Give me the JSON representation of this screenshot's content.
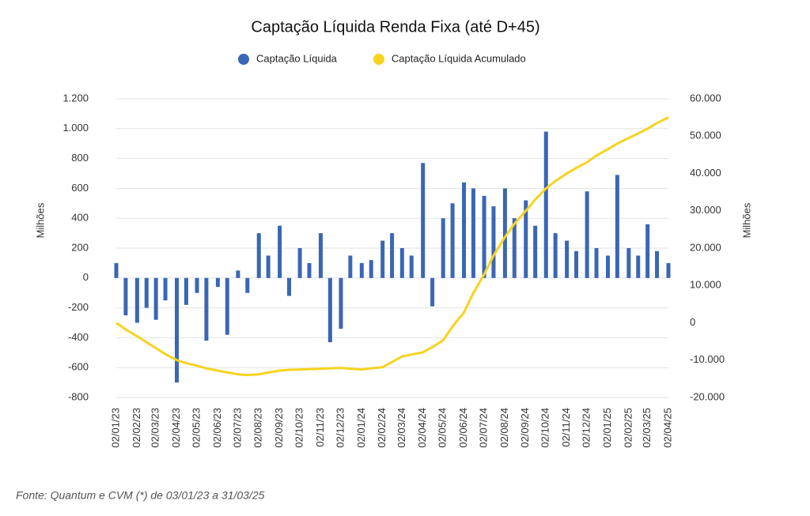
{
  "chart_data": {
    "type": "bar_line",
    "title": "Captação Líquida Renda Fixa (até D+45)",
    "source": "Fonte: Quantum e CVM (*) de 03/01/23 a 31/03/25",
    "y_label": "Milhões",
    "y2_label": "Milhões",
    "x": [
      "02/01/23",
      "16/01/23",
      "02/02/23",
      "16/02/23",
      "02/03/23",
      "16/03/23",
      "02/04/23",
      "16/04/23",
      "02/05/23",
      "16/05/23",
      "02/06/23",
      "16/06/23",
      "02/07/23",
      "16/07/23",
      "02/08/23",
      "16/08/23",
      "02/09/23",
      "16/09/23",
      "02/10/23",
      "16/10/23",
      "02/11/23",
      "16/11/23",
      "02/12/23",
      "16/12/23",
      "02/01/24",
      "16/01/24",
      "02/02/24",
      "16/02/24",
      "02/03/24",
      "16/03/24",
      "02/04/24",
      "16/04/24",
      "02/05/24",
      "16/05/24",
      "02/06/24",
      "16/06/24",
      "02/07/24",
      "16/07/24",
      "02/08/24",
      "16/08/24",
      "02/09/24",
      "16/09/24",
      "02/10/24",
      "16/10/24",
      "02/11/24",
      "16/11/24",
      "02/12/24",
      "16/12/24",
      "02/01/25",
      "16/01/25",
      "02/02/25",
      "16/02/25",
      "02/03/25",
      "16/03/25",
      "02/04/25"
    ],
    "series": [
      {
        "name": "Captação Líquida",
        "color": "#3a66b5",
        "axis": "y",
        "values": [
          100,
          -250,
          -300,
          -200,
          -280,
          -150,
          -700,
          -180,
          -100,
          -420,
          -60,
          -380,
          50,
          -100,
          300,
          150,
          350,
          -120,
          200,
          100,
          300,
          -430,
          -340,
          150,
          100,
          120,
          250,
          300,
          200,
          150,
          770,
          -190,
          400,
          500,
          640,
          600,
          550,
          480,
          600,
          400,
          520,
          350,
          980,
          300,
          250,
          180,
          580,
          200,
          150,
          690,
          200,
          150,
          360,
          180,
          100
        ]
      },
      {
        "name": "Captação Líquida Acumulado",
        "color": "#f7d31e",
        "axis": "y2",
        "values": [
          0,
          -1800,
          -3600,
          -5200,
          -6800,
          -8400,
          -10000,
          -10800,
          -11500,
          -12200,
          -12800,
          -13300,
          -13800,
          -14000,
          -13800,
          -13300,
          -12800,
          -12600,
          -12500,
          -12400,
          -12300,
          -12200,
          -12100,
          -12300,
          -12500,
          -12200,
          -11900,
          -10500,
          -9000,
          -8500,
          -7900,
          -6500,
          -4700,
          -1000,
          2800,
          8000,
          13000,
          18000,
          23000,
          26500,
          30000,
          33000,
          36000,
          38000,
          40000,
          41500,
          43000,
          44800,
          46500,
          48000,
          49500,
          50700,
          52000,
          53500,
          55000
        ]
      }
    ],
    "xlim": [
      "02/01/23",
      "02/04/25"
    ],
    "xticks": [
      "02/01/23",
      "02/02/23",
      "02/03/23",
      "02/04/23",
      "02/05/23",
      "02/06/23",
      "02/07/23",
      "02/08/23",
      "02/09/23",
      "02/10/23",
      "02/11/23",
      "02/12/23",
      "02/01/24",
      "02/02/24",
      "02/03/24",
      "02/04/24",
      "02/05/24",
      "02/06/24",
      "02/07/24",
      "02/08/24",
      "02/09/24",
      "02/10/24",
      "02/11/24",
      "02/12/24",
      "02/01/25",
      "02/02/25",
      "02/03/25",
      "02/04/25"
    ],
    "ylim": [
      -800,
      1200
    ],
    "yticks": [
      {
        "value": 1200,
        "label": "1.200"
      },
      {
        "value": 1000,
        "label": "1.000"
      },
      800,
      600,
      400,
      200,
      0,
      -200,
      -400,
      -600,
      -800
    ],
    "y2lim": [
      -20000,
      60000
    ],
    "y2ticks": [
      {
        "value": 60000,
        "label": "60.000"
      },
      {
        "value": 50000,
        "label": "50.000"
      },
      {
        "value": 40000,
        "label": "40.000"
      },
      {
        "value": 30000,
        "label": "30.000"
      },
      {
        "value": 20000,
        "label": "20.000"
      },
      {
        "value": 10000,
        "label": "10.000"
      },
      0,
      {
        "value": -10000,
        "label": "-10.000"
      },
      {
        "value": -20000,
        "label": "-20.000"
      }
    ],
    "grid": true,
    "legend": "top"
  }
}
